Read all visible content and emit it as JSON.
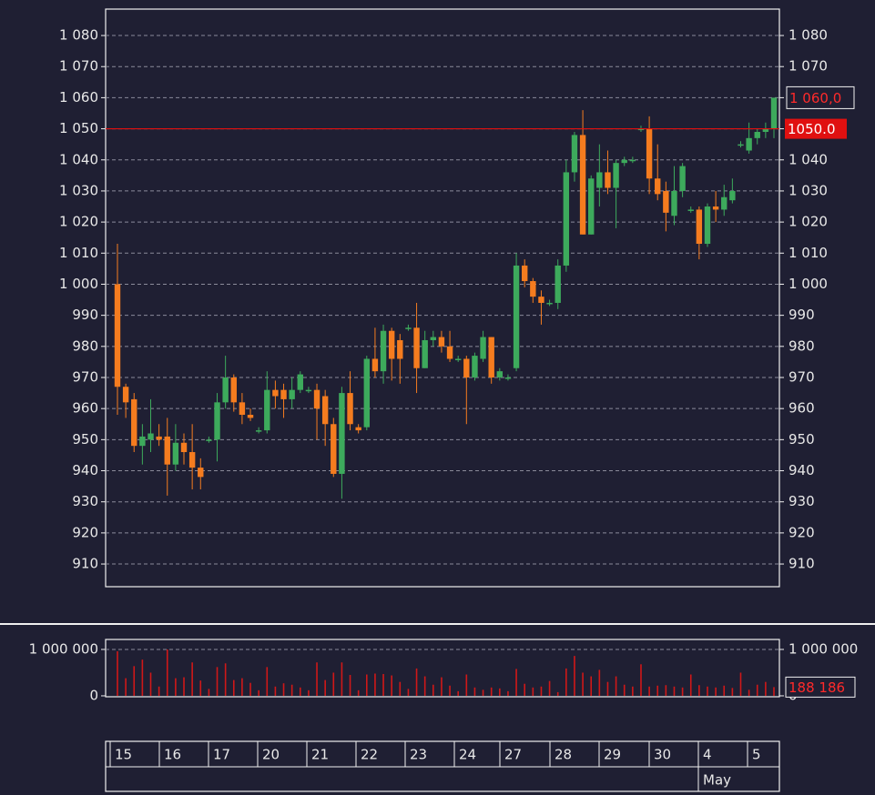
{
  "chart_data": [
    {
      "type": "candlestick",
      "open": [
        1000,
        967,
        963,
        948,
        950,
        951,
        951,
        942,
        949,
        946,
        941,
        950,
        950,
        962,
        970,
        962,
        958,
        953,
        953,
        966,
        966,
        963,
        966,
        966,
        966,
        964,
        955,
        939,
        965,
        954,
        954,
        976,
        972,
        985,
        982,
        986,
        986,
        973,
        982,
        983,
        980,
        976,
        976,
        970,
        976,
        983,
        970,
        970,
        973,
        1006,
        1001,
        996,
        994,
        994,
        1006,
        1036,
        1048,
        1016,
        1031,
        1036,
        1031,
        1039,
        1040,
        1050,
        1050,
        1034,
        1030,
        1022,
        1030,
        1024,
        1024,
        1013,
        1025,
        1024,
        1027,
        1045,
        1043,
        1047,
        1049,
        1050
      ],
      "high": [
        1013,
        968,
        965,
        955,
        963,
        955,
        957,
        955,
        952,
        955,
        944,
        951,
        965,
        977,
        971,
        965,
        960,
        954,
        972,
        969,
        968,
        970,
        972,
        967,
        968,
        966,
        957,
        967,
        972,
        955,
        977,
        986,
        987,
        986,
        984,
        987,
        994,
        985,
        985,
        985,
        985,
        977,
        977,
        978,
        985,
        983,
        973,
        971,
        1010,
        1008,
        1002,
        998,
        995,
        1008,
        1040,
        1049,
        1056,
        1035,
        1045,
        1043,
        1040,
        1041,
        1041,
        1051,
        1054,
        1045,
        1033,
        1038,
        1039,
        1025,
        1025,
        1026,
        1030,
        1032,
        1034,
        1046,
        1052,
        1050,
        1052,
        1060
      ],
      "low": [
        958,
        957,
        946,
        942,
        946,
        948,
        932,
        940,
        942,
        934,
        934,
        949,
        943,
        960,
        959,
        955,
        956,
        952,
        952,
        960,
        957,
        960,
        965,
        965,
        950,
        948,
        938,
        931,
        953,
        952,
        953,
        970,
        968,
        969,
        968,
        985,
        965,
        973,
        980,
        978,
        975,
        975,
        955,
        969,
        975,
        968,
        969,
        969,
        972,
        999,
        994,
        987,
        993,
        992,
        1004,
        1033,
        1016,
        1016,
        1025,
        1029,
        1018,
        1038,
        1039,
        1049,
        1029,
        1027,
        1017,
        1019,
        1028,
        1023,
        1008,
        1012,
        1020,
        1022,
        1026,
        1044,
        1042,
        1045,
        1047,
        1047
      ],
      "close": [
        967,
        962,
        948,
        951,
        952,
        950,
        942,
        949,
        946,
        941,
        938,
        950,
        962,
        970,
        962,
        958,
        957,
        953,
        966,
        964,
        963,
        966,
        971,
        966,
        960,
        955,
        939,
        965,
        955,
        953,
        976,
        972,
        985,
        976,
        976,
        986,
        973,
        982,
        983,
        980,
        976,
        976,
        970,
        977,
        983,
        970,
        972,
        970,
        1006,
        1001,
        996,
        994,
        994,
        1006,
        1036,
        1048,
        1016,
        1034,
        1036,
        1031,
        1039,
        1040,
        1040,
        1050,
        1034,
        1029,
        1023,
        1030,
        1038,
        1024,
        1013,
        1025,
        1024,
        1028,
        1030,
        1045,
        1047,
        1049,
        1050,
        1060
      ],
      "colors": {
        "up": "#3daa5c",
        "down": "#f57c1f"
      },
      "ylim": [
        902.7,
        1088.5
      ],
      "yticks": [
        {
          "value": 910,
          "label": "910"
        },
        {
          "value": 920,
          "label": "920"
        },
        {
          "value": 930,
          "label": "930"
        },
        {
          "value": 940,
          "label": "940"
        },
        {
          "value": 950,
          "label": "950"
        },
        {
          "value": 960,
          "label": "960"
        },
        {
          "value": 970,
          "label": "970"
        },
        {
          "value": 980,
          "label": "980"
        },
        {
          "value": 990,
          "label": "990"
        },
        {
          "value": 1000,
          "label": "1 000"
        },
        {
          "value": 1010,
          "label": "1 010"
        },
        {
          "value": 1020,
          "label": "1 020"
        },
        {
          "value": 1030,
          "label": "1 030"
        },
        {
          "value": 1040,
          "label": "1 040"
        },
        {
          "value": 1050,
          "label": "1 050"
        },
        {
          "value": 1060,
          "label": "1 060"
        },
        {
          "value": 1070,
          "label": "1 070"
        },
        {
          "value": 1080,
          "label": "1 080"
        }
      ],
      "grid": true,
      "hline": {
        "value": 1050,
        "label": "1050.0",
        "color": "#e01010"
      },
      "last_price": {
        "value": 1060,
        "label": "1 060,0",
        "color": "#ff2a2a"
      },
      "days": [
        "15",
        "16",
        "17",
        "20",
        "21",
        "22",
        "23",
        "24",
        "27",
        "28",
        "29",
        "30",
        "4",
        "5"
      ],
      "month": "May"
    },
    {
      "type": "bar",
      "values": [
        960000,
        380000,
        640000,
        780000,
        500000,
        200000,
        1000000,
        380000,
        400000,
        720000,
        330000,
        150000,
        620000,
        700000,
        340000,
        380000,
        280000,
        120000,
        620000,
        200000,
        270000,
        240000,
        180000,
        120000,
        720000,
        340000,
        500000,
        720000,
        450000,
        120000,
        460000,
        480000,
        470000,
        440000,
        300000,
        150000,
        590000,
        420000,
        240000,
        400000,
        220000,
        100000,
        460000,
        180000,
        130000,
        180000,
        160000,
        100000,
        580000,
        260000,
        180000,
        200000,
        320000,
        80000,
        590000,
        860000,
        500000,
        420000,
        560000,
        300000,
        420000,
        240000,
        200000,
        680000,
        200000,
        220000,
        230000,
        200000,
        180000,
        460000,
        230000,
        200000,
        180000,
        220000,
        170000,
        500000,
        130000,
        240000,
        300000,
        188186
      ],
      "color": "#d01818",
      "ylim": [
        -20000,
        1215000
      ],
      "yticks": [
        {
          "value": 0,
          "label": "0"
        },
        {
          "value": 1000000,
          "label": "1 000 000"
        }
      ],
      "grid": true,
      "last_value": {
        "value": 188186,
        "label": "188 186",
        "color": "#ff2a2a"
      }
    }
  ]
}
